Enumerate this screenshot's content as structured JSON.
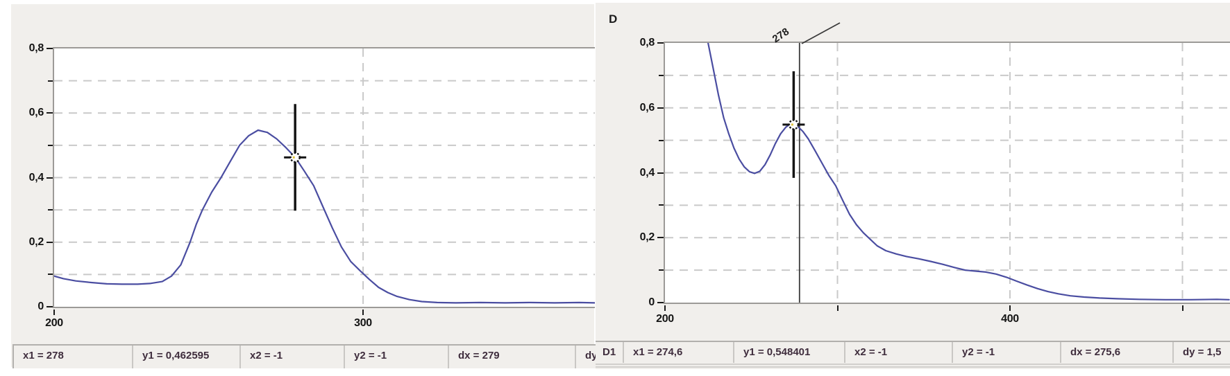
{
  "colors": {
    "panel_bg": "#f1efec",
    "plot_bg": "#ffffff",
    "axis_border": "#9c9a97",
    "grid": "#c9c9c9",
    "curve": "#4a4da1",
    "cursor": "#141414",
    "marker_speck": "#e0c43c",
    "status_text": "#3f2d3d"
  },
  "left_panel": {
    "status_cells": [
      "x1 = 278",
      "y1 = 0,462595",
      "x2 = -1",
      "y2 = -1",
      "dx = 279",
      "dy"
    ]
  },
  "right_panel": {
    "title": "D",
    "status_cells": [
      "D1",
      "x1 = 274,6",
      "y1 = 0,548401",
      "x2 = -1",
      "y2 = -1",
      "dx = 275,6",
      "dy = 1,5"
    ]
  },
  "chart_data": [
    {
      "id": "left-spectrum",
      "type": "line",
      "title": "",
      "xlim": [
        200,
        375
      ],
      "ylim": [
        0,
        0.8
      ],
      "grid": "dashed",
      "x_gridlines": [
        300
      ],
      "x_ticks": [
        {
          "v": 200,
          "label": "200"
        },
        {
          "v": 300,
          "label": "300"
        }
      ],
      "y_ticks": [
        {
          "v": 0,
          "label": "0"
        },
        {
          "v": 0.1
        },
        {
          "v": 0.2,
          "label": "0,2"
        },
        {
          "v": 0.3
        },
        {
          "v": 0.4,
          "label": "0,4"
        },
        {
          "v": 0.5
        },
        {
          "v": 0.6,
          "label": "0,6"
        },
        {
          "v": 0.7
        },
        {
          "v": 0.8,
          "label": "0,8"
        }
      ],
      "cursor": {
        "x1": 278,
        "y1": 0.462595,
        "x2": -1,
        "y2": -1,
        "dx": 279
      },
      "points": [
        [
          200,
          0.095
        ],
        [
          203,
          0.087
        ],
        [
          207,
          0.08
        ],
        [
          212,
          0.075
        ],
        [
          217,
          0.071
        ],
        [
          222,
          0.07
        ],
        [
          227,
          0.07
        ],
        [
          231,
          0.072
        ],
        [
          235,
          0.078
        ],
        [
          238,
          0.095
        ],
        [
          241,
          0.13
        ],
        [
          244,
          0.2
        ],
        [
          246,
          0.255
        ],
        [
          248,
          0.3
        ],
        [
          251,
          0.355
        ],
        [
          254,
          0.4
        ],
        [
          257,
          0.45
        ],
        [
          260,
          0.5
        ],
        [
          263,
          0.53
        ],
        [
          266,
          0.547
        ],
        [
          269,
          0.54
        ],
        [
          272,
          0.52
        ],
        [
          275,
          0.493
        ],
        [
          278,
          0.463
        ],
        [
          281,
          0.42
        ],
        [
          284,
          0.375
        ],
        [
          287,
          0.31
        ],
        [
          290,
          0.245
        ],
        [
          293,
          0.185
        ],
        [
          296,
          0.14
        ],
        [
          299,
          0.112
        ],
        [
          302,
          0.085
        ],
        [
          305,
          0.06
        ],
        [
          308,
          0.044
        ],
        [
          311,
          0.032
        ],
        [
          315,
          0.022
        ],
        [
          319,
          0.016
        ],
        [
          324,
          0.013
        ],
        [
          330,
          0.012
        ],
        [
          338,
          0.013
        ],
        [
          346,
          0.012
        ],
        [
          354,
          0.013
        ],
        [
          362,
          0.012
        ],
        [
          370,
          0.013
        ],
        [
          375,
          0.012
        ]
      ]
    },
    {
      "id": "right-spectrum",
      "type": "line",
      "title": "D",
      "trace": "D1",
      "xlim": [
        200,
        527
      ],
      "ylim": [
        0,
        0.8
      ],
      "grid": "dashed",
      "x_gridlines": [
        300,
        400,
        500
      ],
      "x_ticks": [
        {
          "v": 200,
          "label": "200"
        },
        {
          "v": 300
        },
        {
          "v": 400,
          "label": "400"
        },
        {
          "v": 500
        }
      ],
      "y_ticks": [
        {
          "v": 0,
          "label": "0"
        },
        {
          "v": 0.1
        },
        {
          "v": 0.2,
          "label": "0,2"
        },
        {
          "v": 0.3
        },
        {
          "v": 0.4,
          "label": "0,4"
        },
        {
          "v": 0.5
        },
        {
          "v": 0.6,
          "label": "0,6"
        },
        {
          "v": 0.7
        },
        {
          "v": 0.8,
          "label": "0,8"
        }
      ],
      "cursor": {
        "x1": 274.6,
        "y1": 0.548401,
        "x2": -1,
        "y2": -1,
        "dx": 275.6,
        "dy": "1,5"
      },
      "annotation": {
        "x": 278,
        "label": "278"
      },
      "points": [
        [
          218,
          1.0
        ],
        [
          222,
          0.88
        ],
        [
          225,
          0.8
        ],
        [
          228,
          0.72
        ],
        [
          231,
          0.64
        ],
        [
          234,
          0.57
        ],
        [
          237,
          0.52
        ],
        [
          240,
          0.476
        ],
        [
          243,
          0.442
        ],
        [
          246,
          0.418
        ],
        [
          249,
          0.403
        ],
        [
          252,
          0.398
        ],
        [
          255,
          0.405
        ],
        [
          258,
          0.425
        ],
        [
          261,
          0.455
        ],
        [
          264,
          0.49
        ],
        [
          267,
          0.52
        ],
        [
          270,
          0.54
        ],
        [
          272,
          0.548
        ],
        [
          274.6,
          0.548
        ],
        [
          277,
          0.543
        ],
        [
          280,
          0.527
        ],
        [
          283,
          0.505
        ],
        [
          287,
          0.468
        ],
        [
          291,
          0.43
        ],
        [
          295,
          0.392
        ],
        [
          299,
          0.36
        ],
        [
          303,
          0.315
        ],
        [
          307,
          0.272
        ],
        [
          311,
          0.24
        ],
        [
          315,
          0.215
        ],
        [
          319,
          0.195
        ],
        [
          323,
          0.175
        ],
        [
          328,
          0.16
        ],
        [
          334,
          0.15
        ],
        [
          340,
          0.142
        ],
        [
          347,
          0.135
        ],
        [
          354,
          0.127
        ],
        [
          361,
          0.118
        ],
        [
          368,
          0.108
        ],
        [
          374,
          0.1
        ],
        [
          380,
          0.097
        ],
        [
          386,
          0.094
        ],
        [
          392,
          0.088
        ],
        [
          398,
          0.078
        ],
        [
          404,
          0.066
        ],
        [
          410,
          0.054
        ],
        [
          416,
          0.043
        ],
        [
          422,
          0.034
        ],
        [
          428,
          0.027
        ],
        [
          435,
          0.021
        ],
        [
          443,
          0.017
        ],
        [
          452,
          0.014
        ],
        [
          462,
          0.012
        ],
        [
          475,
          0.01
        ],
        [
          490,
          0.009
        ],
        [
          505,
          0.009
        ],
        [
          520,
          0.01
        ],
        [
          527,
          0.009
        ]
      ]
    }
  ]
}
